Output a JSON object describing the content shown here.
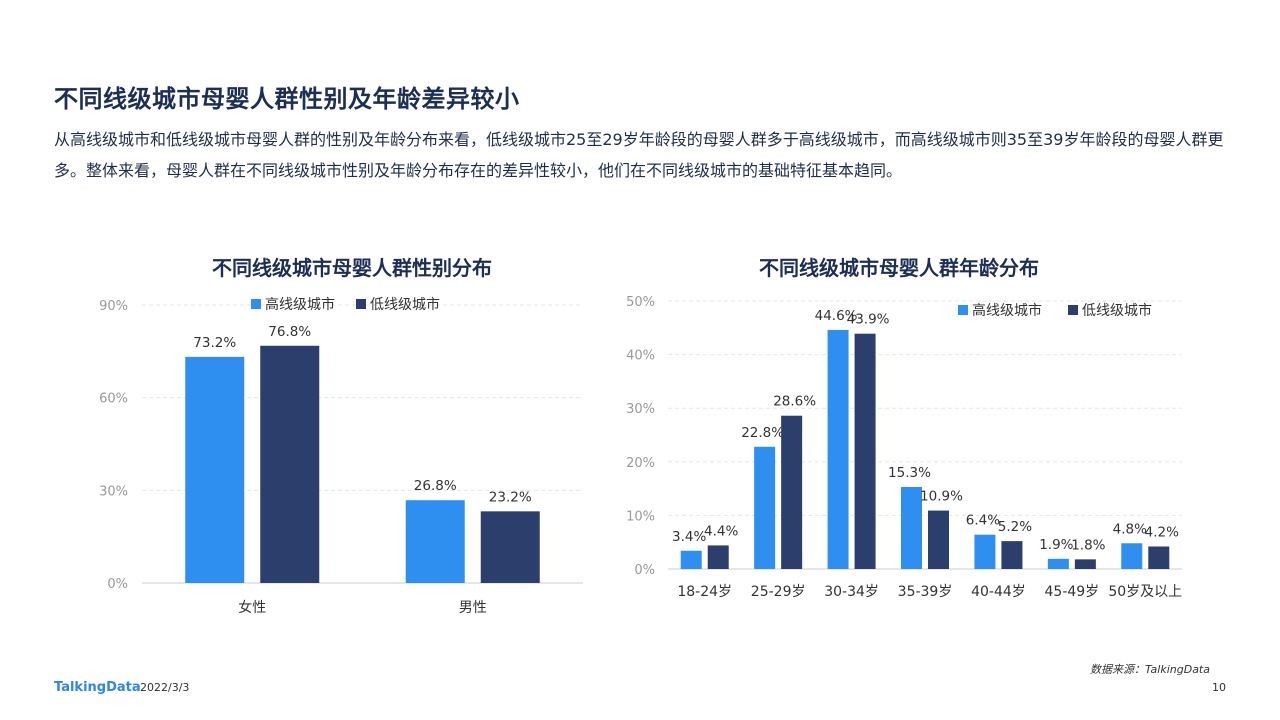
{
  "header": {
    "title": "不同线级城市母婴人群性别及年龄差异较小",
    "summary": "从高线级城市和低线级城市母婴人群的性别及年龄分布来看，低线级城市25至29岁年龄段的母婴人群多于高线级城市，而高线级城市则35至39岁年龄段的母婴人群更多。整体来看，母婴人群在不同线级城市性别及年龄分布存在的差异性较小，他们在不同线级城市的基础特征基本趋同。"
  },
  "colors": {
    "high_tier": "#2e8ff0",
    "low_tier": "#2c3e6b",
    "grid": "#e6e6e6"
  },
  "chart_data": [
    {
      "type": "bar",
      "title": "不同线级城市母婴人群性别分布",
      "categories": [
        "女性",
        "男性"
      ],
      "series": [
        {
          "name": "高线级城市",
          "values": [
            73.2,
            26.8
          ],
          "labels": [
            "73.2%",
            "26.8%"
          ]
        },
        {
          "name": "低线级城市",
          "values": [
            76.8,
            23.2
          ],
          "labels": [
            "76.8%",
            "23.2%"
          ]
        }
      ],
      "ylim": [
        0,
        90
      ],
      "yticks": [
        "0%",
        "30%",
        "60%",
        "90%"
      ],
      "ytick_values": [
        0,
        30,
        60,
        90
      ],
      "legend_position": "top",
      "grid": true
    },
    {
      "type": "bar",
      "title": "不同线级城市母婴人群年龄分布",
      "categories": [
        "18-24岁",
        "25-29岁",
        "30-34岁",
        "35-39岁",
        "40-44岁",
        "45-49岁",
        "50岁及以上"
      ],
      "series": [
        {
          "name": "高线级城市",
          "values": [
            3.4,
            22.8,
            44.6,
            15.3,
            6.4,
            1.9,
            4.8
          ],
          "labels": [
            "3.4%",
            "22.8%",
            "44.6%",
            "15.3%",
            "6.4%",
            "1.9%",
            "4.8%"
          ]
        },
        {
          "name": "低线级城市",
          "values": [
            4.4,
            28.6,
            43.9,
            10.9,
            5.2,
            1.8,
            4.2
          ],
          "labels": [
            "4.4%",
            "28.6%",
            "43.9%",
            "10.9%",
            "5.2%",
            "1.8%",
            "4.2%"
          ]
        }
      ],
      "ylim": [
        0,
        50
      ],
      "yticks": [
        "0%",
        "10%",
        "20%",
        "30%",
        "40%",
        "50%"
      ],
      "ytick_values": [
        0,
        10,
        20,
        30,
        40,
        50
      ],
      "legend_position": "top-right",
      "grid": true
    }
  ],
  "footer": {
    "brand": "TalkingData",
    "date": "2022/3/3",
    "source": "数据来源：TalkingData",
    "page_number": "10"
  }
}
